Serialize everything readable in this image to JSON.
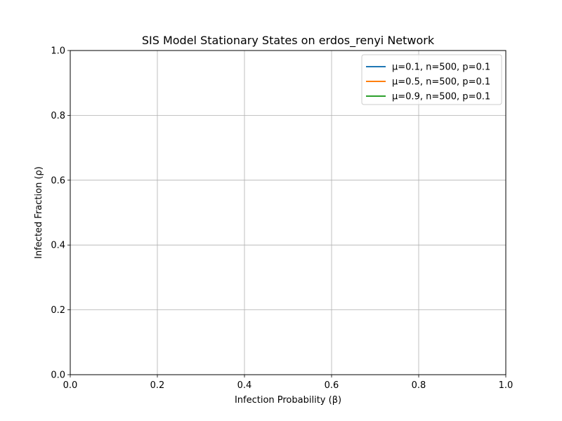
{
  "chart_data": {
    "type": "line",
    "title": "SIS Model Stationary States on erdos_renyi Network",
    "xlabel": "Infection Probability (β)",
    "ylabel": "Infected Fraction (ρ)",
    "xlim": [
      0.0,
      1.0
    ],
    "ylim": [
      0.0,
      1.0
    ],
    "xticks": [
      "0.0",
      "0.2",
      "0.4",
      "0.6",
      "0.8",
      "1.0"
    ],
    "yticks": [
      "0.0",
      "0.2",
      "0.4",
      "0.6",
      "0.8",
      "1.0"
    ],
    "grid": true,
    "legend_position": "top-right",
    "series": [
      {
        "name": "μ=0.1, n=500, p=0.1",
        "color": "#1f77b4",
        "x": [],
        "y": []
      },
      {
        "name": "μ=0.5, n=500, p=0.1",
        "color": "#ff7f0e",
        "x": [],
        "y": []
      },
      {
        "name": "μ=0.9, n=500, p=0.1",
        "color": "#2ca02c",
        "x": [],
        "y": []
      }
    ]
  }
}
